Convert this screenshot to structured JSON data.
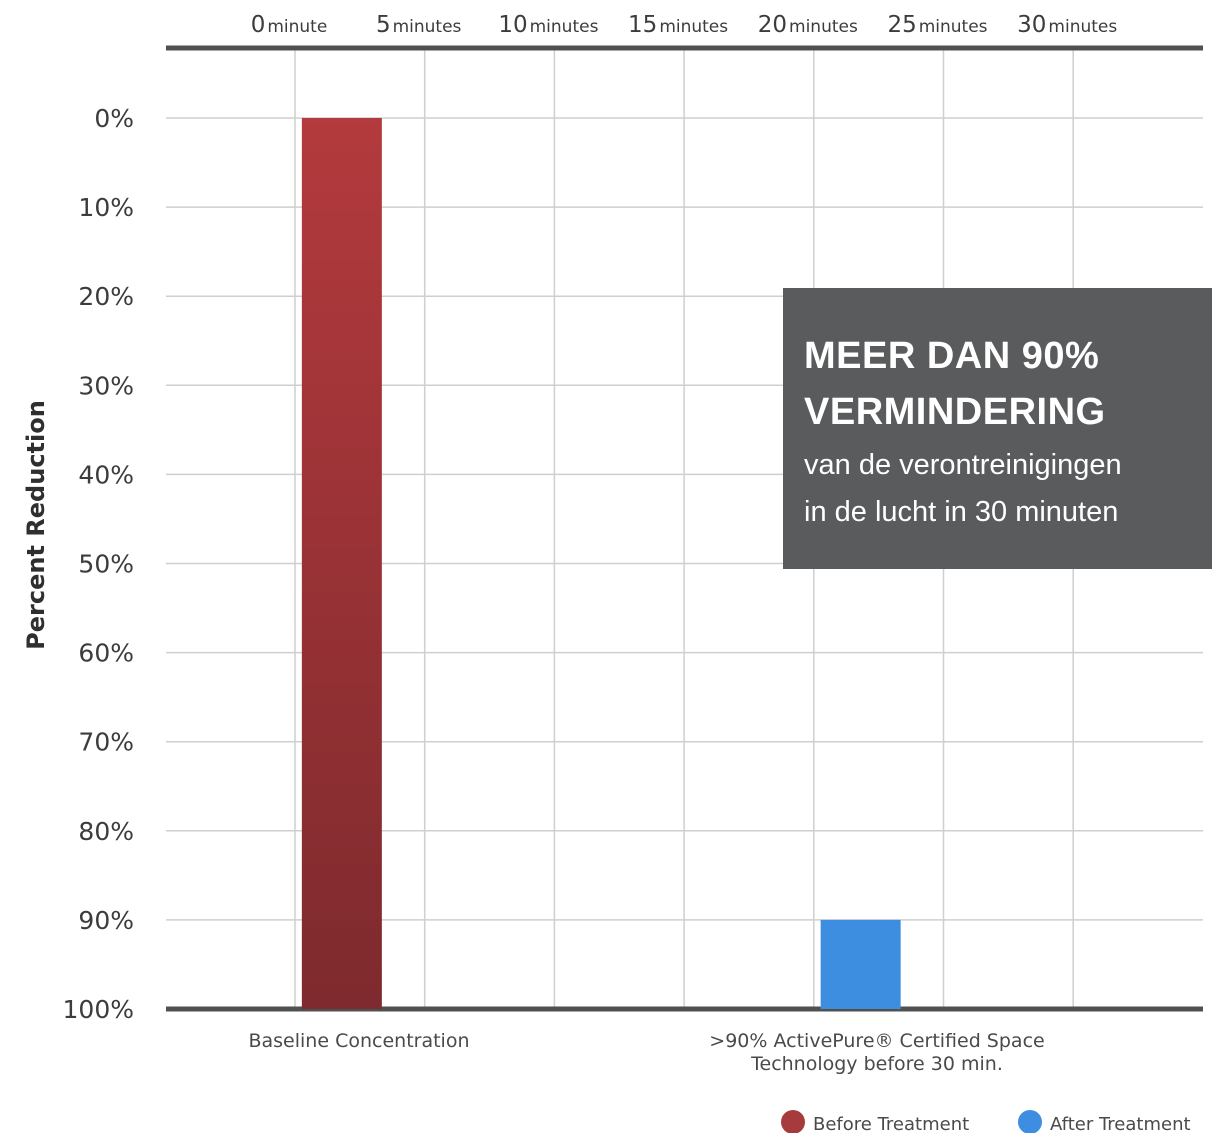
{
  "chart_data": {
    "type": "bar",
    "title": "",
    "ylabel": "Percent Reduction",
    "y_axis_inverted": true,
    "ylim": [
      0,
      100
    ],
    "y_ticks": [
      "0%",
      "10%",
      "20%",
      "30%",
      "40%",
      "50%",
      "60%",
      "70%",
      "80%",
      "90%",
      "100%"
    ],
    "x_top_axis": [
      {
        "value": "0",
        "unit": "minute"
      },
      {
        "value": "5",
        "unit": "minutes"
      },
      {
        "value": "10",
        "unit": "minutes"
      },
      {
        "value": "15",
        "unit": "minutes"
      },
      {
        "value": "20",
        "unit": "minutes"
      },
      {
        "value": "25",
        "unit": "minutes"
      },
      {
        "value": "30",
        "unit": "minutes"
      }
    ],
    "categories": [
      [
        "Baseline Concentration"
      ],
      [
        ">90% ActivePure® Certified Space",
        "Technology before 30 min."
      ]
    ],
    "bars": [
      {
        "category_index": 0,
        "time_minutes": 2.5,
        "from": 0,
        "to": 100,
        "series": "Before Treatment",
        "color": "#a73a3c"
      },
      {
        "category_index": 1,
        "time_minutes": 22.5,
        "from": 90,
        "to": 100,
        "series": "After Treatment",
        "color": "#3d8ee0"
      }
    ],
    "legend": {
      "placement": "bottom-right",
      "items": [
        {
          "name": "Before Treatment",
          "color": "#a73a3c"
        },
        {
          "name": "After Treatment",
          "color": "#3d8ee0"
        }
      ]
    },
    "grid": true
  },
  "callout": {
    "headline_line1": "MEER DAN 90%",
    "headline_line2": "VERMINDERING",
    "body_line1": "van de verontreinigingen",
    "body_line2": "in de lucht in 30 minuten"
  }
}
